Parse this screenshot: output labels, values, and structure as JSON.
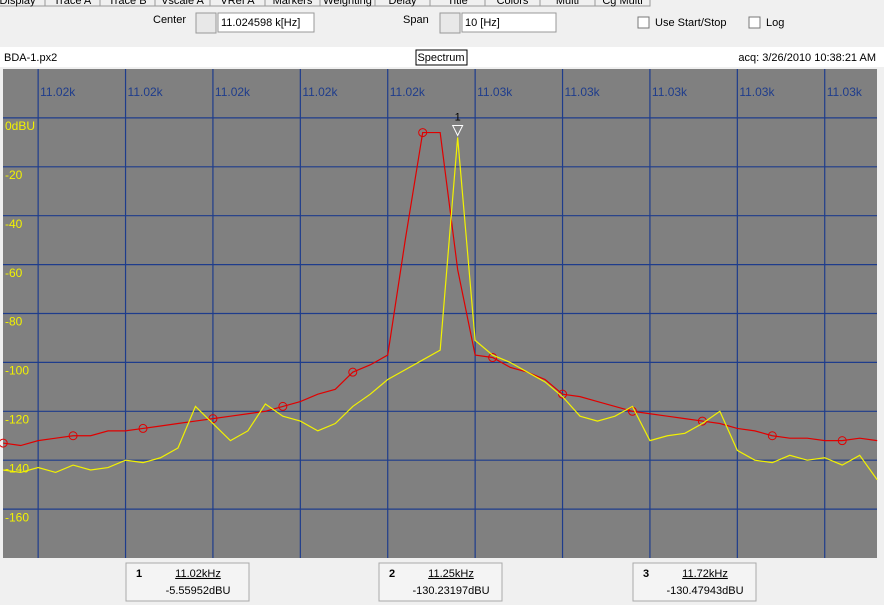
{
  "tabs": [
    "Display",
    "Trace A",
    "Trace B",
    "Vscale A",
    "VRef A",
    "Markers",
    "Weighting",
    "Delay",
    "Title",
    "Colors",
    "Multi",
    "Cg Multi"
  ],
  "controls": {
    "center_label": "Center",
    "center_value": "11.024598 k[Hz]",
    "span_label": "Span",
    "span_value": "10 [Hz]",
    "start_stop": "Use Start/Stop",
    "log": "Log"
  },
  "header": {
    "file": "BDA-1.px2",
    "mode": "Spectrum",
    "acq": "acq: 3/26/2010 10:38:21 AM"
  },
  "chart_data": {
    "type": "line",
    "x": [
      11019.6,
      11019.8,
      11020.0,
      11020.2,
      11020.4,
      11020.6,
      11020.8,
      11021.0,
      11021.2,
      11021.4,
      11021.6,
      11021.8,
      11022.0,
      11022.2,
      11022.4,
      11022.6,
      11022.8,
      11023.0,
      11023.2,
      11023.4,
      11023.6,
      11023.8,
      11024.0,
      11024.2,
      11024.4,
      11024.6,
      11024.8,
      11025.0,
      11025.2,
      11025.4,
      11025.6,
      11025.8,
      11026.0,
      11026.2,
      11026.4,
      11026.6,
      11026.8,
      11027.0,
      11027.2,
      11027.4,
      11027.6,
      11027.8,
      11028.0,
      11028.2,
      11028.4,
      11028.6,
      11028.8,
      11029.0,
      11029.2,
      11029.4,
      11029.6
    ],
    "series": [
      {
        "color": "#e00000",
        "values": [
          -133,
          -134,
          -132,
          -131,
          -130,
          -130,
          -128,
          -128,
          -127,
          -126,
          -125,
          -124,
          -123,
          -122,
          -121,
          -120,
          -118,
          -116,
          -113,
          -111,
          -104,
          -101,
          -97,
          -50,
          -6,
          -6,
          -62,
          -97,
          -98,
          -102,
          -104,
          -107,
          -113,
          -114,
          -116,
          -118,
          -120,
          -121,
          -122,
          -123,
          -124,
          -125,
          -127,
          -128,
          -130,
          -131,
          -131,
          -132,
          -132,
          -131,
          -132
        ]
      },
      {
        "color": "#f2f200",
        "values": [
          -144,
          -145,
          -143,
          -145,
          -142,
          -144,
          -143,
          -140,
          -141,
          -139,
          -135,
          -118,
          -125,
          -132,
          -128,
          -117,
          -122,
          -124,
          -128,
          -125,
          -118,
          -113,
          -107,
          -103,
          -99,
          -95,
          -8,
          -91,
          -97,
          -100,
          -104,
          -108,
          -114,
          -122,
          -124,
          -122,
          -118,
          -132,
          -130,
          -129,
          -125,
          -120,
          -136,
          -140,
          -141,
          -138,
          -140,
          -139,
          -142,
          -138,
          -148
        ]
      }
    ],
    "xlim": [
      11019.598,
      11029.598
    ],
    "ylim": [
      -180,
      20
    ],
    "xticks": [
      {
        "value": 11020,
        "label": "11.02k"
      },
      {
        "value": 11021,
        "label": "11.02k"
      },
      {
        "value": 11022,
        "label": "11.02k"
      },
      {
        "value": 11023,
        "label": "11.02k"
      },
      {
        "value": 11024,
        "label": "11.02k"
      },
      {
        "value": 11025,
        "label": "11.03k"
      },
      {
        "value": 11026,
        "label": "11.03k"
      },
      {
        "value": 11027,
        "label": "11.03k"
      },
      {
        "value": 11028,
        "label": "11.03k"
      },
      {
        "value": 11029,
        "label": "11.03k"
      }
    ],
    "yticks": [
      {
        "value": 0,
        "label": "0dBU"
      },
      -20,
      -40,
      -60,
      -80,
      -100,
      -120,
      -140,
      -160
    ],
    "grid": true,
    "peak_marker": "1"
  },
  "markers": [
    {
      "id": "1",
      "freq": "11.02kHz",
      "level": "-5.55952dBU"
    },
    {
      "id": "2",
      "freq": "11.25kHz",
      "level": "-130.23197dBU"
    },
    {
      "id": "3",
      "freq": "11.72kHz",
      "level": "-130.47943dBU"
    }
  ]
}
